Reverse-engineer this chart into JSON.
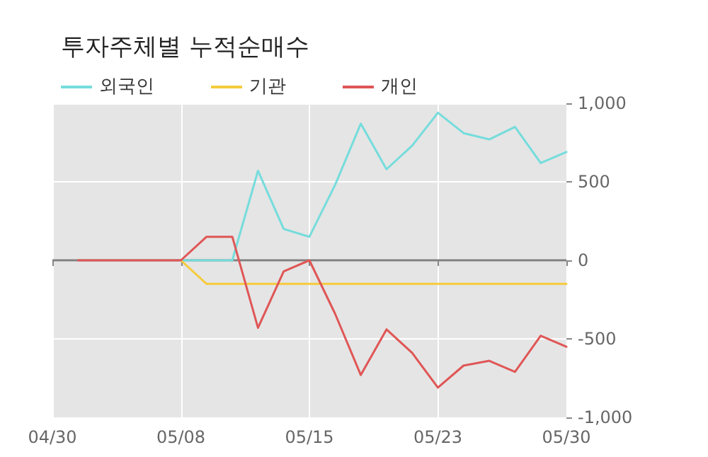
{
  "chart_data": {
    "type": "line",
    "title": "투자주체별 누적순매수",
    "categories": [
      "04/30",
      null,
      null,
      null,
      null,
      "05/08",
      null,
      null,
      null,
      null,
      "05/15",
      null,
      null,
      null,
      null,
      "05/23",
      null,
      null,
      null,
      null,
      "05/30"
    ],
    "series": [
      {
        "name": "외국인",
        "color": "#76dcdc",
        "values": [
          null,
          null,
          null,
          null,
          null,
          0,
          0,
          0,
          570,
          200,
          150,
          480,
          870,
          580,
          730,
          940,
          810,
          770,
          850,
          620,
          690
        ]
      },
      {
        "name": "기관",
        "color": "#f5cb3c",
        "values": [
          null,
          null,
          null,
          null,
          null,
          0,
          -150,
          -150,
          -150,
          -150,
          -150,
          -150,
          -150,
          -150,
          -150,
          -150,
          -150,
          -150,
          -150,
          -150,
          -150
        ]
      },
      {
        "name": "개인",
        "color": "#e05656",
        "values": [
          null,
          0,
          0,
          0,
          0,
          0,
          150,
          150,
          -430,
          -70,
          0,
          -340,
          -730,
          -440,
          -590,
          -810,
          -670,
          -640,
          -710,
          -480,
          -550
        ]
      }
    ],
    "ylim": [
      -1000,
      1000
    ],
    "yticks": [
      {
        "value": -1000,
        "label": "-1,000"
      },
      {
        "value": -500,
        "label": "-500"
      },
      0,
      500,
      {
        "value": 1000,
        "label": "1,000"
      }
    ],
    "ref_lines": [
      {
        "axis": "y",
        "value": 0,
        "color": "#808080"
      }
    ],
    "grid": true,
    "legend": "top left",
    "marker": "none",
    "line_style": "solid"
  }
}
